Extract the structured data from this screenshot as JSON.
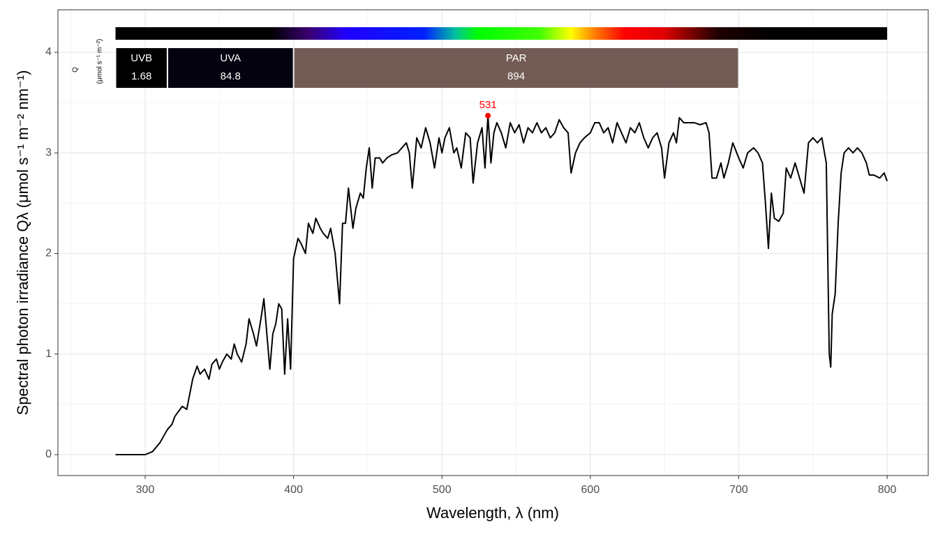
{
  "chart_data": {
    "type": "line",
    "x_label": "Wavelength, λ (nm)",
    "y_label": "Spectral  photon  irradiance  Qλ  (μmol s⁻¹ m⁻² nm⁻¹)",
    "color": "#000000",
    "x": [
      280,
      285,
      290,
      295,
      300,
      305,
      310,
      315,
      318,
      320,
      325,
      328,
      330,
      332,
      335,
      337,
      340,
      343,
      345,
      348,
      350,
      352,
      355,
      358,
      360,
      362,
      365,
      368,
      370,
      373,
      375,
      378,
      380,
      382,
      384,
      386,
      388,
      390,
      392,
      394,
      396,
      398,
      400,
      403,
      405,
      408,
      410,
      413,
      415,
      418,
      420,
      423,
      425,
      428,
      431,
      433,
      435,
      437,
      440,
      442,
      445,
      447,
      449,
      451,
      453,
      455,
      458,
      460,
      463,
      466,
      470,
      473,
      476,
      478,
      480,
      483,
      486,
      489,
      492,
      495,
      498,
      500,
      502,
      505,
      508,
      510,
      513,
      516,
      519,
      521,
      524,
      527,
      529,
      531,
      533,
      535,
      537,
      540,
      543,
      546,
      549,
      552,
      555,
      558,
      561,
      564,
      567,
      570,
      573,
      576,
      579,
      582,
      585,
      587,
      590,
      593,
      596,
      600,
      603,
      606,
      609,
      612,
      615,
      618,
      621,
      624,
      627,
      630,
      633,
      636,
      639,
      642,
      645,
      648,
      650,
      653,
      656,
      658,
      660,
      663,
      666,
      670,
      674,
      678,
      680,
      682,
      685,
      688,
      690,
      693,
      696,
      700,
      703,
      706,
      710,
      713,
      716,
      718,
      720,
      722,
      724,
      727,
      730,
      732,
      735,
      738,
      741,
      744,
      747,
      750,
      753,
      756,
      759,
      761,
      762,
      763,
      765,
      767,
      769,
      771,
      774,
      777,
      780,
      783,
      786,
      788,
      791,
      795,
      798,
      800
    ],
    "values": [
      0,
      0,
      0,
      0,
      0,
      0.03,
      0.12,
      0.25,
      0.3,
      0.38,
      0.48,
      0.45,
      0.6,
      0.75,
      0.88,
      0.8,
      0.85,
      0.75,
      0.9,
      0.95,
      0.85,
      0.92,
      1.0,
      0.95,
      1.1,
      1.0,
      0.92,
      1.1,
      1.35,
      1.2,
      1.08,
      1.35,
      1.55,
      1.2,
      0.85,
      1.2,
      1.3,
      1.5,
      1.45,
      0.8,
      1.35,
      0.85,
      1.95,
      2.15,
      2.1,
      2.0,
      2.3,
      2.2,
      2.35,
      2.25,
      2.2,
      2.15,
      2.25,
      2.0,
      1.5,
      2.3,
      2.3,
      2.65,
      2.25,
      2.45,
      2.6,
      2.55,
      2.85,
      3.05,
      2.65,
      2.95,
      2.95,
      2.9,
      2.95,
      2.98,
      3.0,
      3.05,
      3.1,
      3.0,
      2.65,
      3.15,
      3.05,
      3.25,
      3.1,
      2.85,
      3.15,
      3.0,
      3.15,
      3.25,
      3.0,
      3.05,
      2.85,
      3.2,
      3.15,
      2.7,
      3.1,
      3.25,
      2.85,
      3.37,
      2.9,
      3.2,
      3.3,
      3.2,
      3.05,
      3.3,
      3.2,
      3.28,
      3.1,
      3.25,
      3.2,
      3.3,
      3.2,
      3.25,
      3.15,
      3.2,
      3.33,
      3.25,
      3.2,
      2.8,
      3.0,
      3.1,
      3.15,
      3.2,
      3.3,
      3.3,
      3.2,
      3.25,
      3.1,
      3.3,
      3.2,
      3.1,
      3.25,
      3.2,
      3.3,
      3.15,
      3.05,
      3.15,
      3.2,
      3.05,
      2.75,
      3.1,
      3.2,
      3.1,
      3.35,
      3.3,
      3.3,
      3.3,
      3.28,
      3.3,
      3.2,
      2.75,
      2.75,
      2.9,
      2.75,
      2.9,
      3.1,
      2.95,
      2.85,
      3.0,
      3.05,
      3.0,
      2.9,
      2.5,
      2.05,
      2.6,
      2.35,
      2.32,
      2.4,
      2.85,
      2.75,
      2.9,
      2.75,
      2.6,
      3.1,
      3.15,
      3.1,
      3.15,
      2.9,
      1.0,
      0.87,
      1.4,
      1.6,
      2.3,
      2.8,
      3.0,
      3.05,
      3.0,
      3.05,
      3.0,
      2.9,
      2.78,
      2.78,
      2.75,
      2.8,
      2.72
    ],
    "peak": {
      "x": 531,
      "value": 3.37,
      "color": "#ff0000"
    },
    "band_title": "Q",
    "band_units": "(μmol s⁻¹ m⁻²)",
    "bands": [
      {
        "name": "UVB",
        "range": [
          280,
          315
        ],
        "value": 1.68,
        "color": "#000000"
      },
      {
        "name": "UVA",
        "range": [
          315,
          400
        ],
        "value": 84.8,
        "color": "#05020f"
      },
      {
        "name": "PAR",
        "range": [
          400,
          700
        ],
        "value": 894,
        "color": "#735c55"
      }
    ],
    "xlim": [
      241.2,
      827.7
    ],
    "ylim": [
      -0.208,
      4.423
    ],
    "xticks": [
      300,
      400,
      500,
      600,
      700,
      800
    ],
    "yticks": [
      0,
      1,
      2,
      3,
      4
    ],
    "grid": true
  }
}
